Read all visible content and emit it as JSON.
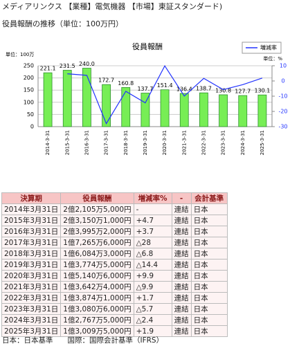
{
  "header": {
    "company": "メディアリンクス 【業種】電気機器 【市場】東証スタンダード)",
    "subtitle": "役員報酬の推移（単位：100万円）"
  },
  "chart_data": {
    "type": "bar",
    "title": "役員報酬",
    "y_label": "単位：100万",
    "y2_label": "単位：%",
    "categories": [
      "2014-3-31",
      "2015-3-31",
      "2016-3-31",
      "2017-3-31",
      "2018-3-31",
      "2019-3-31",
      "2020-3-31",
      "2021-3-31",
      "2022-3-31",
      "2023-3-31",
      "2024-3-31",
      "2025-3-31"
    ],
    "series": [
      {
        "type": "bar",
        "color": "#77ee55",
        "values": [
          221.1,
          231.5,
          240,
          172.7,
          160.8,
          137.7,
          151.4,
          136.4,
          138.7,
          130.8,
          127.7,
          130.1
        ],
        "value_labels": [
          "221.1",
          "231.5",
          "240.0",
          "172.7",
          "160.8",
          "137.7",
          "151.4",
          "136.4",
          "138.7",
          "130.8",
          "127.7",
          "130.1"
        ]
      },
      {
        "type": "line",
        "name": "増減率",
        "color": "#2233ff",
        "axis": "y2",
        "values": [
          null,
          4.7,
          3.7,
          -28,
          -6.8,
          -14.4,
          9.9,
          -9.9,
          1.7,
          -5.7,
          -2.4,
          1.9
        ]
      }
    ],
    "ylim": [
      0,
      250
    ],
    "yticks": [
      0,
      50,
      100,
      150,
      200,
      250
    ],
    "y2lim": [
      -30,
      10
    ],
    "y2ticks": [
      10,
      0,
      -10,
      -20,
      -30
    ],
    "grid": true,
    "legend": "top-right"
  },
  "table": {
    "columns": [
      "決算期",
      "役員報酬",
      "増減率%",
      "-",
      "会計基準"
    ],
    "rows": [
      [
        "2014年3月31日",
        "2億2,105万5,000円",
        "-",
        "連結",
        "日本"
      ],
      [
        "2015年3月31日",
        "2億3,150万1,000円",
        "+4.7",
        "連結",
        "日本"
      ],
      [
        "2016年3月31日",
        "2億3,995万2,000円",
        "+3.7",
        "連結",
        "日本"
      ],
      [
        "2017年3月31日",
        "1億7,265万6,000円",
        "△28",
        "連結",
        "日本"
      ],
      [
        "2018年3月31日",
        "1億6,084万3,000円",
        "△6.8",
        "連結",
        "日本"
      ],
      [
        "2019年3月31日",
        "1億3,774万5,000円",
        "△14.4",
        "連結",
        "日本"
      ],
      [
        "2020年3月31日",
        "1億5,140万6,000円",
        "+9.9",
        "連結",
        "日本"
      ],
      [
        "2021年3月31日",
        "1億3,642万4,000円",
        "△9.9",
        "連結",
        "日本"
      ],
      [
        "2022年3月31日",
        "1億3,874万1,000円",
        "+1.7",
        "連結",
        "日本"
      ],
      [
        "2023年3月31日",
        "1億3,080万6,000円",
        "△5.7",
        "連結",
        "日本"
      ],
      [
        "2024年3月31日",
        "1億2,767万5,000円",
        "△2.4",
        "連結",
        "日本"
      ],
      [
        "2025年3月31日",
        "1億3,009万5,000円",
        "+1.9",
        "連結",
        "日本"
      ]
    ]
  },
  "footer": "日本：日本基準　　国際：国際会計基準（IFRS）"
}
